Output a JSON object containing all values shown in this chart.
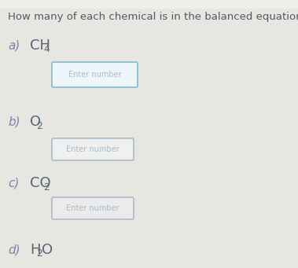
{
  "title": "How many of each chemical is in the balanced equation?",
  "title_fontsize": 9.5,
  "title_color": "#555566",
  "bg_color": "#e8e6e0",
  "items": [
    {
      "label": "a)",
      "formula_main": "CH",
      "formula_sub": "4",
      "box_color": "#7bbdd4",
      "box_bg": "#eef6fb",
      "placeholder": "Enter number",
      "placeholder_color": "#aabbc8",
      "has_box": true
    },
    {
      "label": "b)",
      "formula_main": "O",
      "formula_sub": "2",
      "box_color": "#aabbc8",
      "box_bg": "#f0f0f0",
      "placeholder": "Enter number",
      "placeholder_color": "#aabbc8",
      "has_box": true
    },
    {
      "label": "c)",
      "formula_main": "CO",
      "formula_sub": "2",
      "box_color": "#aabbc8",
      "box_bg": "#ebebeb",
      "placeholder": "Enter number",
      "placeholder_color": "#aabbc8",
      "has_box": true
    },
    {
      "label": "d)",
      "formula_main": "H",
      "formula_sub": "2",
      "formula_extra": "O",
      "box_color": null,
      "box_bg": null,
      "placeholder": null,
      "placeholder_color": null,
      "has_box": false
    }
  ],
  "label_color": "#7788aa",
  "formula_color": "#556677",
  "label_fontsize": 11,
  "formula_fontsize": 13,
  "sub_fontsize": 9,
  "placeholder_fontsize": 7
}
